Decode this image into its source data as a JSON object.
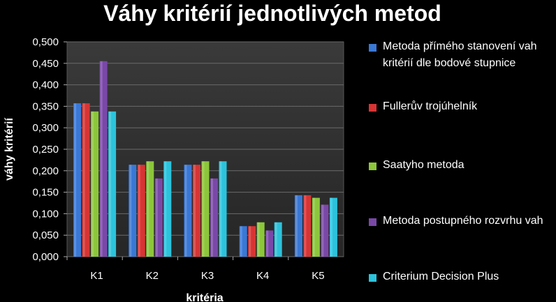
{
  "chart_data": {
    "type": "bar",
    "title": "Váhy kritérií jednotlivých metod",
    "xlabel": "kritéria",
    "ylabel": "váhy kritérií",
    "categories": [
      "K1",
      "K2",
      "K3",
      "K4",
      "K5"
    ],
    "ylim": [
      0,
      0.5
    ],
    "yticks": [
      "0,000",
      "0,050",
      "0,100",
      "0,150",
      "0,200",
      "0,250",
      "0,300",
      "0,350",
      "0,400",
      "0,450",
      "0,500"
    ],
    "grid": true,
    "legend_position": "right",
    "series": [
      {
        "name": "Metoda přímého stanovení vah kritérií dle bodové stupnice",
        "color": "#3a78d6",
        "values": [
          0.357,
          0.214,
          0.214,
          0.071,
          0.143
        ]
      },
      {
        "name": "Fullerův trojúhelník",
        "color": "#d83434",
        "values": [
          0.357,
          0.214,
          0.214,
          0.071,
          0.143
        ]
      },
      {
        "name": "Saatyho metoda",
        "color": "#8cc63a",
        "values": [
          0.338,
          0.222,
          0.222,
          0.08,
          0.137
        ]
      },
      {
        "name": "Metoda postupného rozvrhu vah",
        "color": "#7a48a8",
        "values": [
          0.455,
          0.182,
          0.182,
          0.061,
          0.121
        ]
      },
      {
        "name": "Criterium Decision Plus",
        "color": "#2cc3dc",
        "values": [
          0.338,
          0.222,
          0.222,
          0.08,
          0.137
        ]
      }
    ]
  }
}
